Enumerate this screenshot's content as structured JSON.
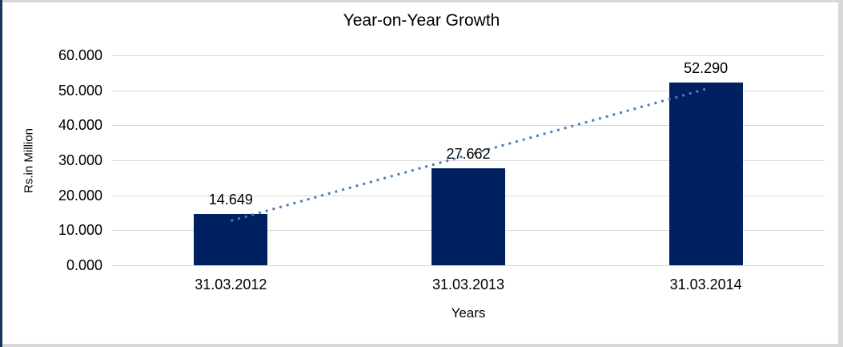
{
  "frame": {
    "left_accent_color": "#17365d",
    "edge_color": "#d8d8d8",
    "background": "#ffffff"
  },
  "chart_data": {
    "type": "bar",
    "title": "Year-on-Year Growth",
    "xlabel": "Years",
    "ylabel": "Rs.in Million",
    "categories": [
      "31.03.2012",
      "31.03.2013",
      "31.03.2014"
    ],
    "values": [
      14.649,
      27.662,
      52.29
    ],
    "value_labels": [
      "14.649",
      "27.662",
      "52.290"
    ],
    "ylim": [
      0,
      60
    ],
    "ytick_step": 10,
    "ytick_labels": [
      "0.000",
      "10.000",
      "20.000",
      "30.000",
      "40.000",
      "50.000",
      "60.000"
    ],
    "grid": "horizontal-only",
    "legend": "none",
    "bar_color": "#002060",
    "gridline_color": "#d9d9d9",
    "trendline": {
      "type": "linear",
      "style": "dotted",
      "color": "#4a7ebb"
    }
  }
}
